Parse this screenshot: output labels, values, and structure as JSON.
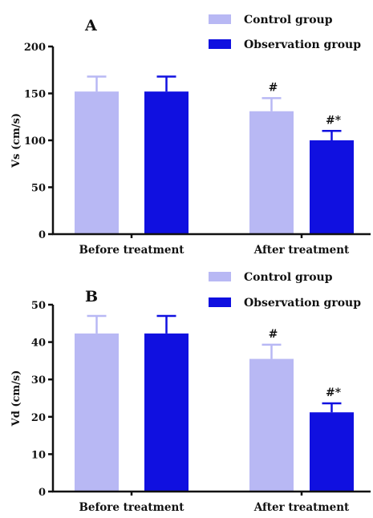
{
  "chart_data": [
    {
      "type": "bar",
      "panel_label": "A",
      "ylabel": "Vs (cm/s)",
      "ylim": [
        0,
        200
      ],
      "yticks": [
        0,
        50,
        100,
        150,
        200
      ],
      "categories": [
        "Before treatment",
        "After treatment"
      ],
      "series": [
        {
          "name": "Control group",
          "color": "#b8b8f4",
          "values": [
            152,
            131
          ],
          "errors": [
            16,
            14
          ]
        },
        {
          "name": "Observation group",
          "color": "#1010e0",
          "values": [
            152,
            100
          ],
          "errors": [
            16,
            10
          ]
        }
      ],
      "annotations": [
        {
          "category": 1,
          "series": 0,
          "text": "#"
        },
        {
          "category": 1,
          "series": 1,
          "text": "#*"
        }
      ],
      "legend": "top-right"
    },
    {
      "type": "bar",
      "panel_label": "B",
      "ylabel": "Vd (cm/s)",
      "ylim": [
        0,
        50
      ],
      "yticks": [
        0,
        10,
        20,
        30,
        40,
        50
      ],
      "categories": [
        "Before treatment",
        "After treatment"
      ],
      "series": [
        {
          "name": "Control group",
          "color": "#b8b8f4",
          "values": [
            42.3,
            35.5
          ],
          "errors": [
            4.7,
            3.8
          ]
        },
        {
          "name": "Observation group",
          "color": "#1010e0",
          "values": [
            42.3,
            21.2
          ],
          "errors": [
            4.7,
            2.4
          ]
        }
      ],
      "annotations": [
        {
          "category": 1,
          "series": 0,
          "text": "#"
        },
        {
          "category": 1,
          "series": 1,
          "text": "#*"
        }
      ],
      "legend": "top-right"
    }
  ]
}
